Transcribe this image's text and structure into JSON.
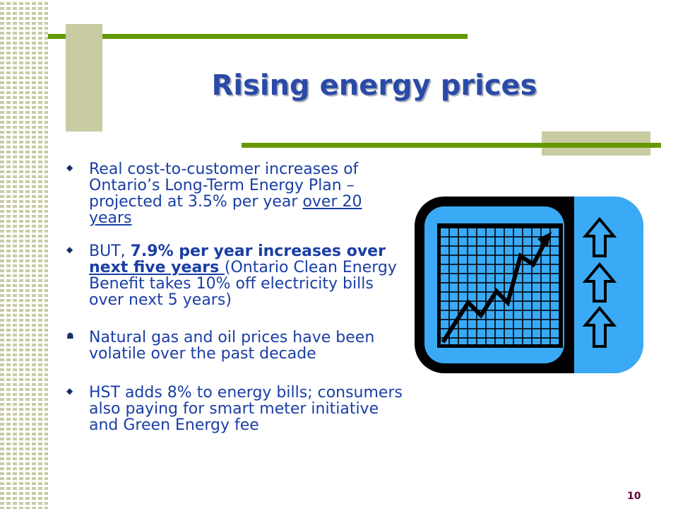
{
  "slide": {
    "title": "Rising energy prices",
    "page_number": "10",
    "bullets": [
      {
        "marker": "◆",
        "text_1": "Real cost-to-customer increases of Ontario’s Long-Term Energy Plan – projected at 3.5% per year ",
        "underline": "over 20 years"
      },
      {
        "marker": "◆",
        "lead": " BUT, ",
        "bold_1": "7.9% per year increases over ",
        "bold_underline": "next five years ",
        "tail": "(Ontario Clean Energy Benefit takes 10% off electricity bills over next 5 years)"
      },
      {
        "marker": "☗",
        "text": "Natural gas and oil prices have been volatile over the past decade"
      },
      {
        "marker": "◆",
        "text": "HST adds 8% to energy bills; consumers also paying for smart meter initiative and Green Energy fee"
      }
    ]
  },
  "colors": {
    "title": "#2a4aa8",
    "body_text": "#1a3ea4",
    "accent_bar": "#669900",
    "accent_block": "#c9cba3",
    "page_number": "#660033",
    "icon_blue": "#3aaaf6",
    "icon_black": "#000000"
  },
  "icons": {
    "chart_icon": "rising-price-chart-icon",
    "up_arrows": [
      "up-arrow-icon",
      "up-arrow-icon",
      "up-arrow-icon"
    ]
  }
}
